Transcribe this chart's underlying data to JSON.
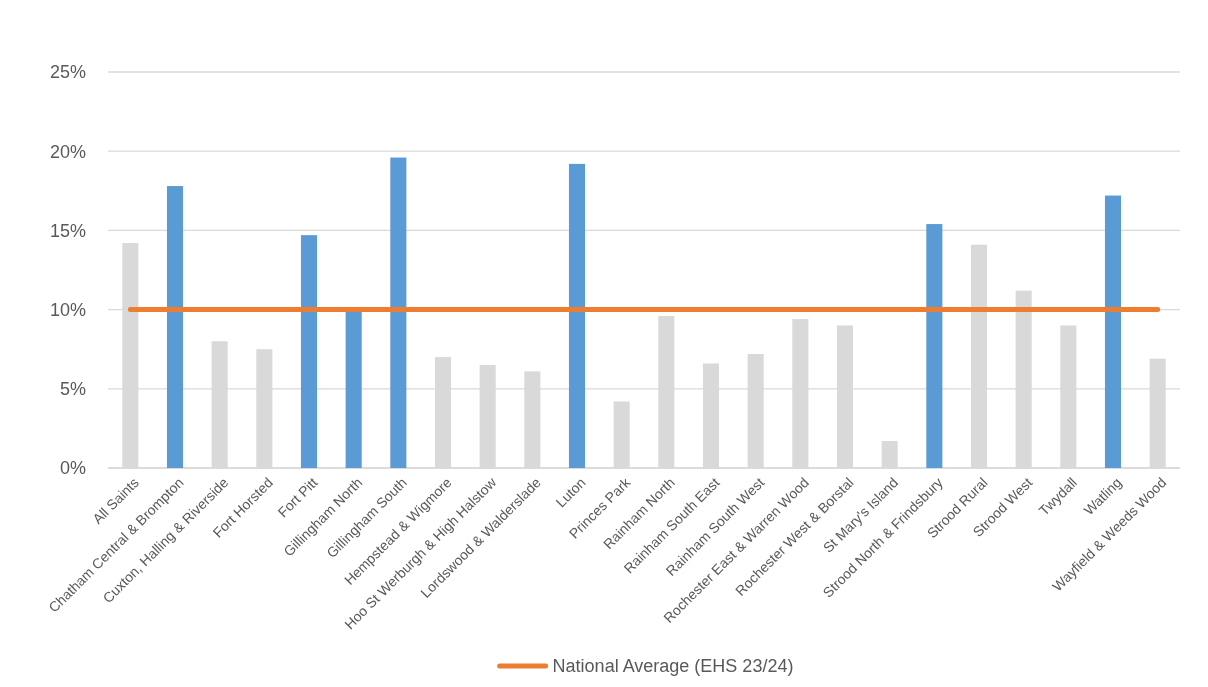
{
  "chart_data": {
    "type": "bar",
    "categories": [
      "All Saints",
      "Chatham Central & Brompton",
      "Cuxton, Halling & Riverside",
      "Fort Horsted",
      "Fort Pitt",
      "Gillingham North",
      "Gillingham South",
      "Hempstead & Wigmore",
      "Hoo St Werburgh & High Halstow",
      "Lordswood & Walderslade",
      "Luton",
      "Princes Park",
      "Rainham North",
      "Rainham South East",
      "Rainham South West",
      "Rochester East & Warren Wood",
      "Rochester West & Borstal",
      "St Mary's Island",
      "Strood North & Frindsbury",
      "Strood Rural",
      "Strood West",
      "Twydall",
      "Watling",
      "Wayfield & Weeds Wood"
    ],
    "series": [
      {
        "values": [
          14.2,
          17.8,
          8.0,
          7.5,
          14.7,
          10.0,
          19.6,
          7.0,
          6.5,
          6.1,
          19.2,
          4.2,
          9.6,
          6.6,
          7.2,
          9.4,
          9.0,
          1.7,
          15.4,
          14.1,
          11.2,
          9.0,
          17.2,
          6.9
        ],
        "colors": [
          "#d9d9d9",
          "#5b9bd5",
          "#d9d9d9",
          "#d9d9d9",
          "#5b9bd5",
          "#5b9bd5",
          "#5b9bd5",
          "#d9d9d9",
          "#d9d9d9",
          "#d9d9d9",
          "#5b9bd5",
          "#d9d9d9",
          "#d9d9d9",
          "#d9d9d9",
          "#d9d9d9",
          "#d9d9d9",
          "#d9d9d9",
          "#d9d9d9",
          "#5b9bd5",
          "#d9d9d9",
          "#d9d9d9",
          "#d9d9d9",
          "#5b9bd5",
          "#d9d9d9"
        ]
      },
      {
        "type": "line",
        "name": "National Average (EHS 23/24)",
        "color": "#ed7d31",
        "values": [
          10,
          10,
          10,
          10,
          10,
          10,
          10,
          10,
          10,
          10,
          10,
          10,
          10,
          10,
          10,
          10,
          10,
          10,
          10,
          10,
          10,
          10,
          10,
          10
        ]
      }
    ],
    "ylim": [
      0,
      25
    ],
    "yticks": [
      {
        "value": 0,
        "label": "0%"
      },
      {
        "value": 5,
        "label": "5%"
      },
      {
        "value": 10,
        "label": "10%"
      },
      {
        "value": 15,
        "label": "15%"
      },
      {
        "value": 20,
        "label": "20%"
      },
      {
        "value": 25,
        "label": "25%"
      }
    ],
    "grid": "y",
    "legend": "bottom"
  }
}
